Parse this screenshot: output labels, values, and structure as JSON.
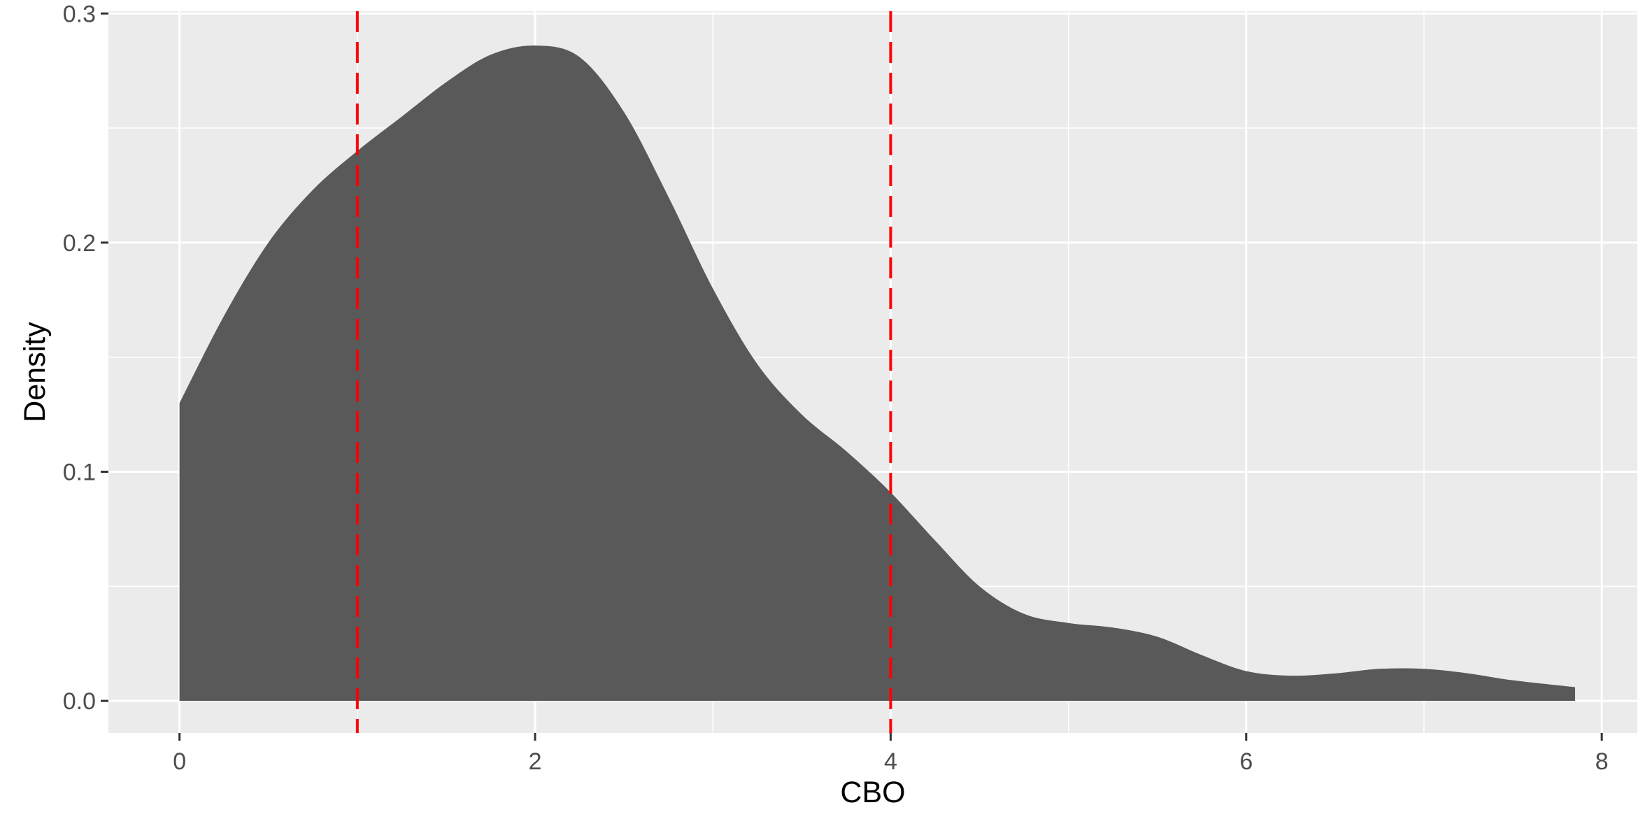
{
  "chart_data": {
    "type": "area",
    "title": "",
    "xlabel": "CBO",
    "ylabel": "Density",
    "xlim": [
      -0.4,
      8.2
    ],
    "ylim": [
      -0.014,
      0.301
    ],
    "x_ticks": [
      0,
      2,
      4,
      6,
      8
    ],
    "x_tick_labels": [
      "0",
      "2",
      "4",
      "6",
      "8"
    ],
    "y_ticks": [
      0.0,
      0.1,
      0.2,
      0.3
    ],
    "y_tick_labels": [
      "0.0",
      "0.1",
      "0.2",
      "0.3"
    ],
    "grid": true,
    "panel_background": "#ebebeb",
    "grid_color": "#ffffff",
    "fill_color": "#595959",
    "series": [
      {
        "x": [
          0,
          0.25,
          0.5,
          0.75,
          1.0,
          1.25,
          1.5,
          1.75,
          2.0,
          2.25,
          2.5,
          2.75,
          3.0,
          3.25,
          3.5,
          3.75,
          4.0,
          4.25,
          4.5,
          4.75,
          5.0,
          5.25,
          5.5,
          5.75,
          6.0,
          6.25,
          6.5,
          6.75,
          7.0,
          7.25,
          7.5,
          7.85
        ],
        "y": [
          0.13,
          0.168,
          0.2,
          0.223,
          0.24,
          0.255,
          0.27,
          0.282,
          0.286,
          0.281,
          0.257,
          0.22,
          0.18,
          0.147,
          0.125,
          0.109,
          0.091,
          0.07,
          0.05,
          0.038,
          0.034,
          0.032,
          0.028,
          0.02,
          0.013,
          0.011,
          0.012,
          0.014,
          0.014,
          0.012,
          0.009,
          0.006
        ]
      }
    ],
    "reference_lines": [
      {
        "x": 1,
        "color": "#ff0000",
        "style": "dashed"
      },
      {
        "x": 4,
        "color": "#ff0000",
        "style": "dashed"
      }
    ]
  }
}
